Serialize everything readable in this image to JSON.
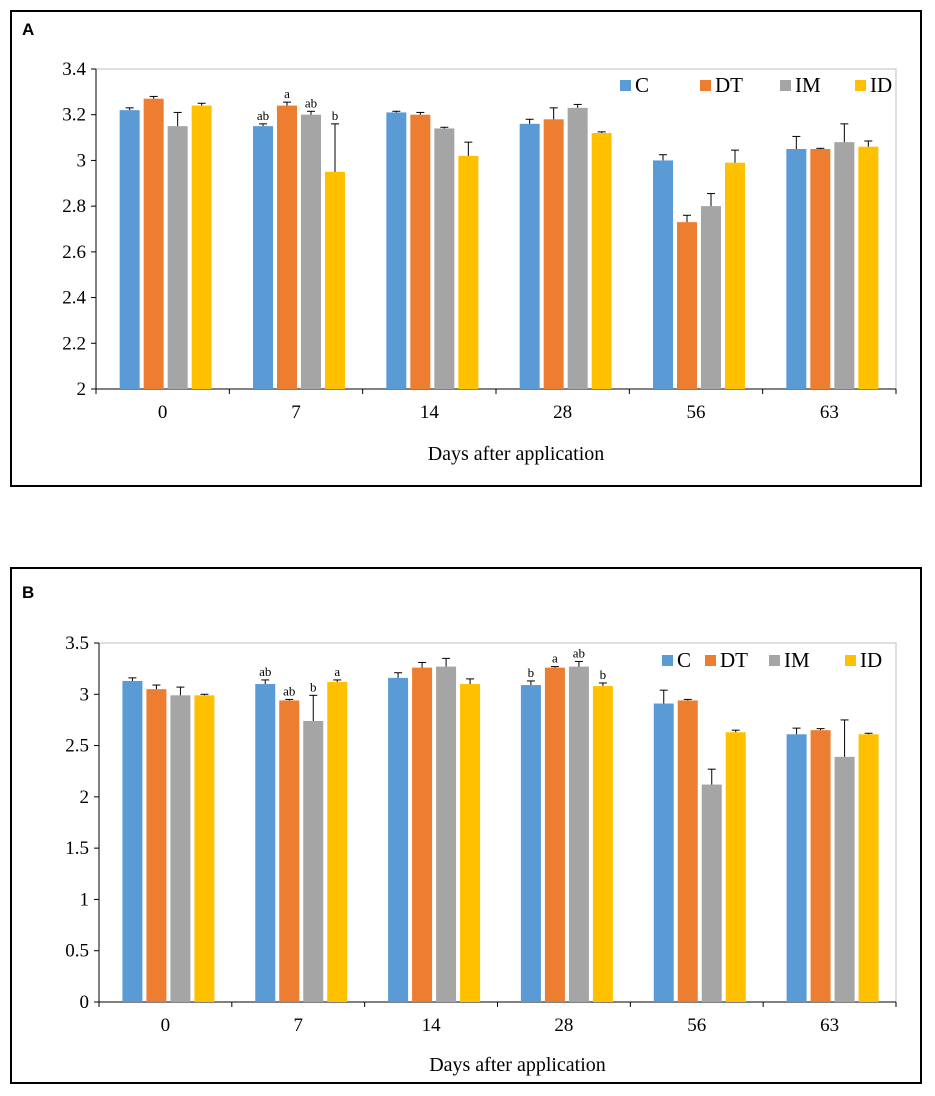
{
  "colors": {
    "C": "#5b9bd5",
    "DT": "#ed7d31",
    "IM": "#a5a5a5",
    "ID": "#ffc000"
  },
  "chart_data": [
    {
      "panel": "A",
      "type": "bar",
      "categories": [
        "0",
        "7",
        "14",
        "28",
        "56",
        "63"
      ],
      "xlabel": "Days after application",
      "ylabel": "",
      "ylim": [
        2,
        3.4
      ],
      "yticks": [
        "2",
        "2.2",
        "2.4",
        "2.6",
        "2.8",
        "3",
        "3.2",
        "3.4"
      ],
      "grid": false,
      "legend_position": "top-right",
      "series": [
        {
          "name": "C",
          "values": [
            3.22,
            3.15,
            3.21,
            3.16,
            3.0,
            3.05
          ],
          "errors": [
            0.01,
            0.01,
            0.005,
            0.02,
            0.025,
            0.055
          ],
          "labels": [
            "",
            "ab",
            "",
            "",
            "",
            ""
          ]
        },
        {
          "name": "DT",
          "values": [
            3.27,
            3.24,
            3.2,
            3.18,
            2.73,
            3.05
          ],
          "errors": [
            0.01,
            0.015,
            0.01,
            0.05,
            0.03,
            0.003
          ],
          "labels": [
            "",
            "a",
            "",
            "",
            "",
            ""
          ]
        },
        {
          "name": "IM",
          "values": [
            3.15,
            3.2,
            3.14,
            3.23,
            2.8,
            3.08
          ],
          "errors": [
            0.06,
            0.015,
            0.005,
            0.015,
            0.055,
            0.08
          ],
          "labels": [
            "",
            "ab",
            "",
            "",
            "",
            ""
          ]
        },
        {
          "name": "ID",
          "values": [
            3.24,
            2.95,
            3.02,
            3.12,
            2.99,
            3.06
          ],
          "errors": [
            0.01,
            0.21,
            0.06,
            0.005,
            0.055,
            0.025
          ],
          "labels": [
            "",
            "b",
            "",
            "",
            "",
            ""
          ]
        }
      ]
    },
    {
      "panel": "B",
      "type": "bar",
      "categories": [
        "0",
        "7",
        "14",
        "28",
        "56",
        "63"
      ],
      "xlabel": "Days after application",
      "ylabel": "",
      "ylim": [
        0,
        3.5
      ],
      "yticks": [
        "0",
        "0.5",
        "1",
        "1.5",
        "2",
        "2.5",
        "3",
        "3.5"
      ],
      "grid": false,
      "legend_position": "top-right",
      "series": [
        {
          "name": "C",
          "values": [
            3.13,
            3.1,
            3.16,
            3.09,
            2.91,
            2.61
          ],
          "errors": [
            0.03,
            0.04,
            0.05,
            0.04,
            0.13,
            0.06
          ],
          "labels": [
            "",
            "ab",
            "",
            "b",
            "",
            ""
          ]
        },
        {
          "name": "DT",
          "values": [
            3.05,
            2.94,
            3.26,
            3.26,
            2.94,
            2.65
          ],
          "errors": [
            0.04,
            0.01,
            0.05,
            0.01,
            0.01,
            0.015
          ],
          "labels": [
            "",
            "ab",
            "",
            "a",
            "",
            ""
          ]
        },
        {
          "name": "IM",
          "values": [
            2.99,
            2.74,
            3.27,
            3.27,
            2.12,
            2.39
          ],
          "errors": [
            0.08,
            0.25,
            0.08,
            0.05,
            0.15,
            0.36
          ],
          "labels": [
            "",
            "b",
            "",
            "ab",
            "",
            ""
          ]
        },
        {
          "name": "ID",
          "values": [
            2.99,
            3.12,
            3.1,
            3.08,
            2.63,
            2.61
          ],
          "errors": [
            0.01,
            0.02,
            0.05,
            0.03,
            0.02,
            0.01
          ],
          "labels": [
            "",
            "a",
            "",
            "b",
            "",
            ""
          ]
        }
      ]
    }
  ]
}
